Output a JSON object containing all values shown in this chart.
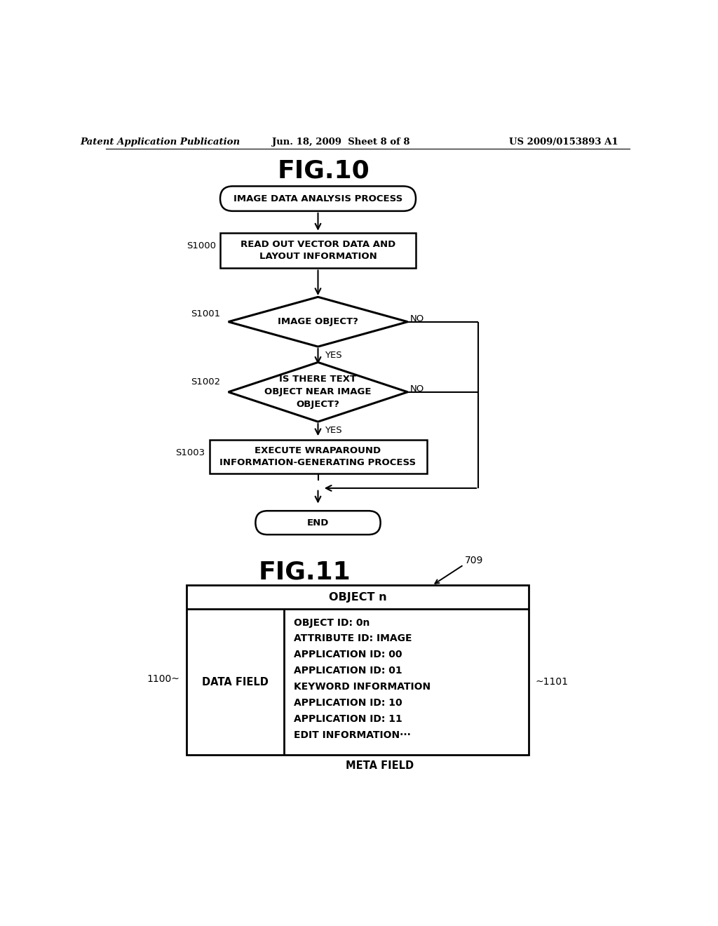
{
  "bg_color": "#ffffff",
  "header_left": "Patent Application Publication",
  "header_center": "Jun. 18, 2009  Sheet 8 of 8",
  "header_right": "US 2009/0153893 A1",
  "fig10_title": "FIG.10",
  "fig11_title": "FIG.11",
  "flowchart": {
    "start_label": "IMAGE DATA ANALYSIS PROCESS",
    "s1000_label": "READ OUT VECTOR DATA AND\nLAYOUT INFORMATION",
    "s1000_tag": "S1000",
    "s1001_label": "IMAGE OBJECT?",
    "s1001_tag": "S1001",
    "s1002_label": "IS THERE TEXT\nOBJECT NEAR IMAGE\nOBJECT?",
    "s1002_tag": "S1002",
    "s1003_label": "EXECUTE WRAPAROUND\nINFORMATION-GENERATING PROCESS",
    "s1003_tag": "S1003",
    "end_label": "END"
  },
  "table": {
    "title": "OBJECT n",
    "tag_709": "709",
    "tag_1100": "1100",
    "tag_1101": "1101",
    "left_cell": "DATA FIELD",
    "right_lines": [
      "OBJECT ID: 0n",
      "ATTRIBUTE ID: IMAGE",
      "APPLICATION ID: 00",
      "APPLICATION ID: 01",
      "KEYWORD INFORMATION",
      "APPLICATION ID: 10",
      "APPLICATION ID: 11",
      "EDIT INFORMATION···"
    ],
    "bottom_label": "META FIELD"
  }
}
